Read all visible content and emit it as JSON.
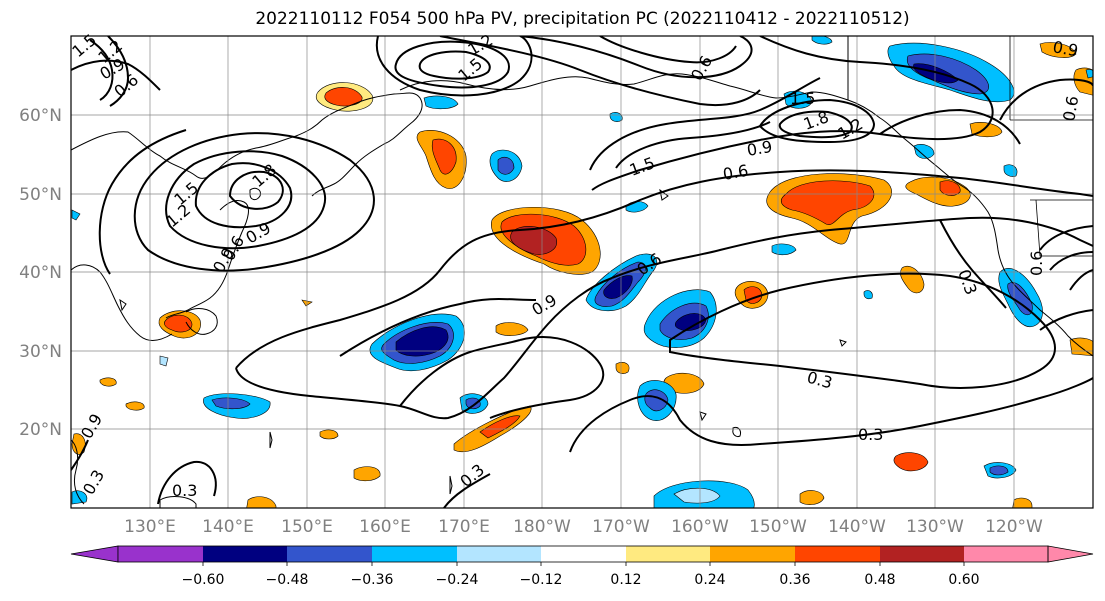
{
  "title": "2022110112 F054 500 hPa PV, precipitation PC (2022110412 - 2022110512)",
  "map": {
    "lon_labels": [
      "130°E",
      "140°E",
      "150°E",
      "160°E",
      "170°E",
      "180°W",
      "170°W",
      "160°W",
      "150°W",
      "140°W",
      "130°W",
      "120°W"
    ],
    "lat_labels": [
      "60°N",
      "50°N",
      "40°N",
      "30°N",
      "20°N"
    ],
    "contour_labels": [
      "1.5",
      "1.2",
      "0.9",
      "0.6",
      "1.5",
      "1.2",
      "0.9",
      "1.8",
      "1.5",
      "1.2",
      "0.9",
      "0.6",
      "1.5",
      "1.8",
      "1.2",
      "0.9",
      "0.6",
      "0.3",
      "0.3",
      "0.3",
      "0.3",
      "0.3",
      "0.6",
      "1.5",
      "0.9",
      "0.6",
      "0.9",
      "0.6",
      "0.3",
      "0.6",
      "0.9"
    ]
  },
  "colorbar": {
    "ticks": [
      "−0.60",
      "−0.48",
      "−0.36",
      "−0.24",
      "−0.12",
      "0.12",
      "0.24",
      "0.36",
      "0.48",
      "0.60"
    ],
    "colors": [
      "#9932cc",
      "#000080",
      "#3355cc",
      "#00bfff",
      "#b3e5ff",
      "#ffffff",
      "#ffea80",
      "#ffa500",
      "#ff4500",
      "#b22222",
      "#ff88aa"
    ],
    "levels": [
      -0.6,
      -0.48,
      -0.36,
      -0.24,
      -0.12,
      0.12,
      0.24,
      0.36,
      0.48,
      0.6
    ]
  }
}
